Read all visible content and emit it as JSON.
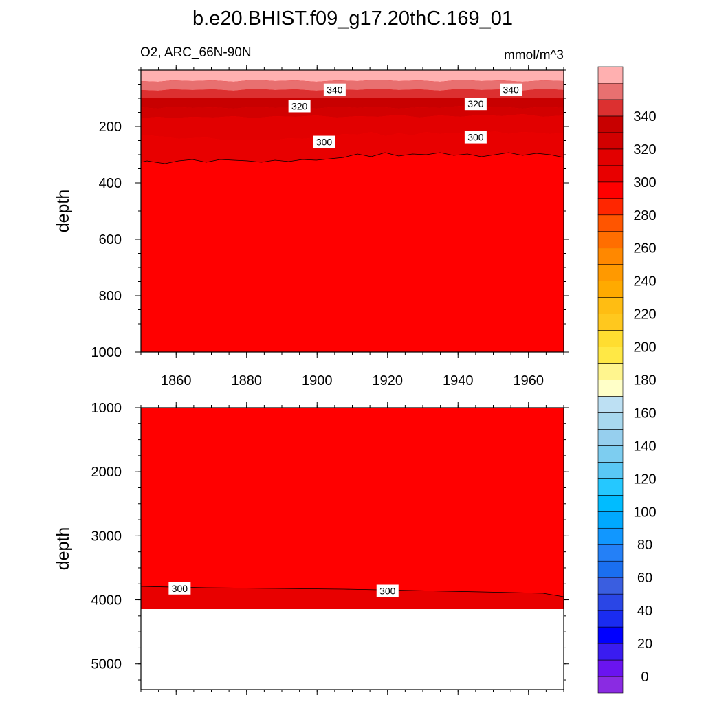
{
  "chart_data": {
    "type": "contour",
    "title": "b.e20.BHIST.f09_g17.20thC.169_01",
    "subtitle_left": "O2, ARC_66N-90N",
    "subtitle_right": "mmol/m^3",
    "x_ticks": [
      "1860",
      "1880",
      "1900",
      "1920",
      "1940",
      "1960"
    ],
    "x_range": [
      1850,
      1970
    ],
    "colorbar": {
      "labels": [
        "0",
        "20",
        "40",
        "60",
        "80",
        "100",
        "120",
        "140",
        "160",
        "180",
        "200",
        "220",
        "240",
        "260",
        "280",
        "300",
        "320",
        "340"
      ],
      "colors": [
        "#8a2be2",
        "#6a14f0",
        "#3a1cf0",
        "#0000ff",
        "#1a2cf0",
        "#2a46e6",
        "#3a5ee0",
        "#1a6ff0",
        "#2480f7",
        "#1197ff",
        "#00a9ff",
        "#00bcff",
        "#25c8ff",
        "#5ac8f5",
        "#7dcdf0",
        "#96cfee",
        "#a8d8ee",
        "#bde0f3",
        "#ffffc8",
        "#fff58e",
        "#ffe845",
        "#ffdd30",
        "#ffc81e",
        "#ffbd12",
        "#ffaa00",
        "#ff9900",
        "#ff8800",
        "#ff6e00",
        "#ff5500",
        "#ff2600",
        "#ff0000",
        "#e80000",
        "#e20000",
        "#d20000",
        "#c80000",
        "#dc3030",
        "#e87070",
        "#ffb0b0"
      ]
    },
    "panels": [
      {
        "name": "upper",
        "ylabel": "depth",
        "y_ticks": [
          "200",
          "400",
          "600",
          "800",
          "1000"
        ],
        "y_range": [
          0,
          1000
        ],
        "contour_labels": [
          {
            "text": "340",
            "x": 1905,
            "y": 70
          },
          {
            "text": "340",
            "x": 1955,
            "y": 70
          },
          {
            "text": "320",
            "x": 1895,
            "y": 128
          },
          {
            "text": "320",
            "x": 1945,
            "y": 120
          },
          {
            "text": "300",
            "x": 1902,
            "y": 255
          },
          {
            "text": "300",
            "x": 1945,
            "y": 238
          }
        ]
      },
      {
        "name": "lower",
        "ylabel": "depth",
        "y_ticks": [
          "1000",
          "2000",
          "3000",
          "4000",
          "5000"
        ],
        "y_range": [
          1000,
          5400
        ],
        "contour_labels": [
          {
            "text": "300",
            "x": 1861,
            "y": 3820
          },
          {
            "text": "300",
            "x": 1920,
            "y": 3860
          }
        ]
      }
    ]
  }
}
